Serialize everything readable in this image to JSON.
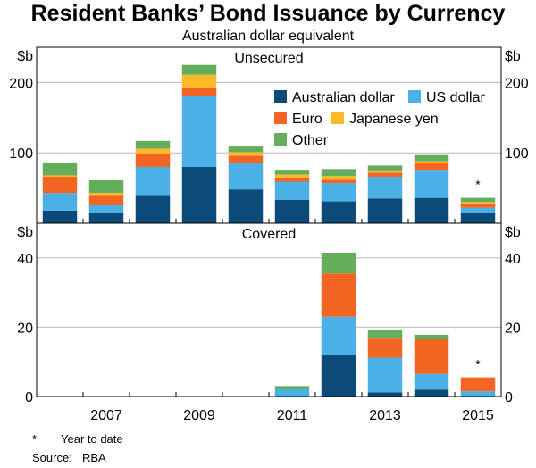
{
  "title": "Resident Banks’ Bond Issuance by Currency",
  "subtitle": "Australian dollar equivalent",
  "footnotes": [
    {
      "mark": "*",
      "text": "Year to date"
    },
    {
      "mark": "Source:",
      "text": "RBA"
    }
  ],
  "colors": {
    "Australian dollar": "#0c4a7a",
    "US dollar": "#4ab0e6",
    "Euro": "#f26522",
    "Japanese yen": "#fdb927",
    "Other": "#64ad5a"
  },
  "chart_data": [
    {
      "type": "bar",
      "stacked": true,
      "panel_title": "Unsecured",
      "unit": "$b",
      "categories": [
        "2006",
        "2007",
        "2008",
        "2009",
        "2010",
        "2011",
        "2012",
        "2013",
        "2014",
        "2015"
      ],
      "ylim": [
        0,
        250
      ],
      "yticks": [
        100,
        200
      ],
      "legend_position": "top-right",
      "annotations": [
        {
          "category": "2015",
          "text": "*"
        }
      ],
      "series": [
        {
          "name": "Australian dollar",
          "values": [
            18,
            14,
            40,
            80,
            48,
            33,
            31,
            35,
            36,
            14
          ]
        },
        {
          "name": "US dollar",
          "values": [
            25,
            12,
            40,
            101,
            37,
            26,
            26,
            31,
            40,
            8
          ]
        },
        {
          "name": "Euro",
          "values": [
            23,
            14,
            19,
            12,
            11,
            6,
            6,
            6,
            9,
            6
          ]
        },
        {
          "name": "Japanese yen",
          "values": [
            2,
            3,
            7,
            18,
            5,
            4,
            4,
            3,
            3,
            2
          ]
        },
        {
          "name": "Other",
          "values": [
            18,
            19,
            11,
            14,
            8,
            7,
            10,
            7,
            10,
            6
          ]
        }
      ]
    },
    {
      "type": "bar",
      "stacked": true,
      "panel_title": "Covered",
      "unit": "$b",
      "categories": [
        "2006",
        "2007",
        "2008",
        "2009",
        "2010",
        "2011",
        "2012",
        "2013",
        "2014",
        "2015"
      ],
      "ylim": [
        0,
        50
      ],
      "yticks": [
        0,
        20,
        40
      ],
      "xticks": [
        "2007",
        "2009",
        "2011",
        "2013",
        "2015"
      ],
      "annotations": [
        {
          "category": "2015",
          "text": "*"
        }
      ],
      "series": [
        {
          "name": "Australian dollar",
          "values": [
            0,
            0,
            0,
            0,
            0,
            0,
            12,
            1.2,
            2,
            0
          ]
        },
        {
          "name": "US dollar",
          "values": [
            0,
            0,
            0,
            0,
            0,
            2.2,
            11,
            10,
            4.5,
            1.5
          ]
        },
        {
          "name": "Euro",
          "values": [
            0,
            0,
            0,
            0,
            0,
            0,
            12.5,
            5.5,
            10,
            4
          ]
        },
        {
          "name": "Japanese yen",
          "values": [
            0,
            0,
            0,
            0,
            0,
            0,
            0,
            0,
            0,
            0
          ]
        },
        {
          "name": "Other",
          "values": [
            0,
            0,
            0,
            0,
            0,
            0.8,
            6,
            2.5,
            1.3,
            0
          ]
        }
      ]
    }
  ]
}
